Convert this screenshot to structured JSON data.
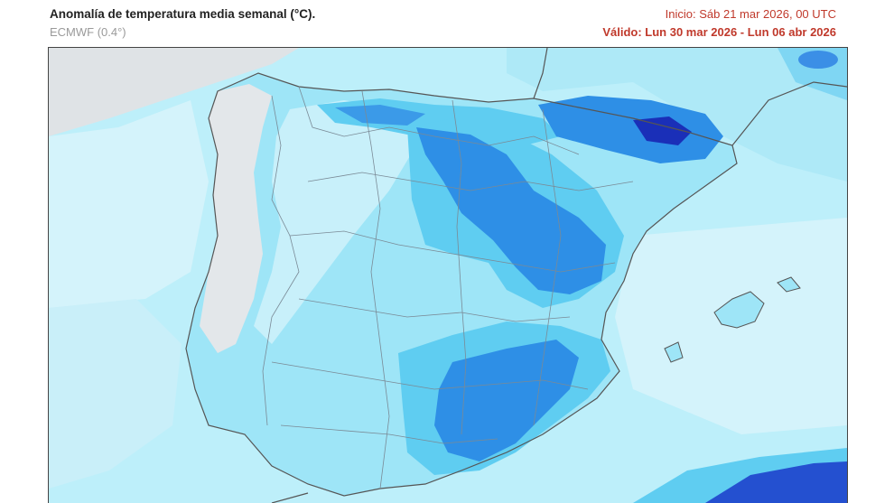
{
  "header": {
    "title": "Anomalía de temperatura media semanal (°C).",
    "model": "ECMWF (0.4°)",
    "init": "Inicio: Sáb 21 mar 2026, 00 UTC",
    "valid": "Válido: Lun 30 mar 2026 - Lun 06 abr 2026"
  },
  "colors": {
    "sea_light": "#bdeffa",
    "anom_very_light": "#d4f3fb",
    "anom_light": "#9ee5f7",
    "anom_mid": "#5fcdf1",
    "anom_strong": "#2e8fe6",
    "anom_stronger": "#1f5fd6",
    "anom_max": "#1a2fb8",
    "neutral_land": "#e9ecee",
    "border_line": "#7a8a96"
  }
}
